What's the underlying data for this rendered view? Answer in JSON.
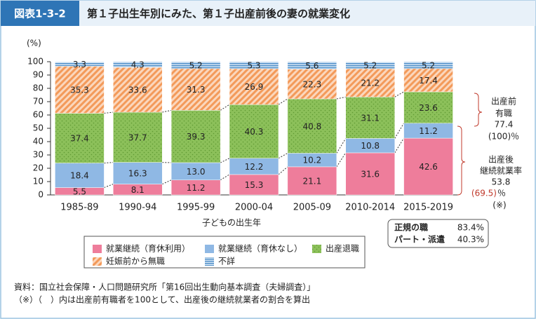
{
  "header": {
    "figure_no": "図表1-3-2",
    "title": "第１子出生年別にみた、第１子出産前後の妻の就業変化"
  },
  "chart_data": {
    "type": "bar",
    "stacked": true,
    "y_unit": "(%)",
    "x_label": "子どもの出生年",
    "categories": [
      "1985-89",
      "1990-94",
      "1995-99",
      "2000-04",
      "2005-09",
      "2010-2014",
      "2015-2019"
    ],
    "series": [
      {
        "name": "就業継続（育休利用）",
        "color": "#ee7d9b",
        "values": [
          5.5,
          8.1,
          11.2,
          15.3,
          21.1,
          31.6,
          42.6
        ],
        "value_labels": [
          "5.5",
          "8.1",
          "11.2",
          "15.3",
          "21.1",
          "31.6",
          "42.6"
        ]
      },
      {
        "name": "就業継続（育休なし）",
        "color": "#8fb8e4",
        "values": [
          18.4,
          16.3,
          13.0,
          12.2,
          10.2,
          10.8,
          11.2
        ],
        "value_labels": [
          "18.4",
          "16.3",
          "13.0",
          "12.2",
          "10.2",
          "10.8",
          "11.2"
        ]
      },
      {
        "name": "出産退職",
        "color": "#8cc05a",
        "values": [
          37.4,
          37.7,
          39.3,
          40.3,
          40.8,
          31.1,
          23.6
        ],
        "value_labels": [
          "37.4",
          "37.7",
          "39.3",
          "40.3",
          "40.8",
          "31.1",
          "23.6"
        ]
      },
      {
        "name": "妊娠前から無職",
        "color": "#f39a5a",
        "values": [
          35.3,
          33.6,
          31.3,
          26.9,
          22.3,
          21.2,
          17.4
        ],
        "value_labels": [
          "35.3",
          "33.6",
          "31.3",
          "26.9",
          "22.3",
          "21.2",
          "17.4"
        ]
      },
      {
        "name": "不詳",
        "color": "#4f8fc8",
        "values": [
          3.3,
          4.3,
          5.2,
          5.3,
          5.6,
          5.2,
          5.2
        ],
        "value_labels": [
          "3.3",
          "4.3",
          "5.2",
          "5.3",
          "5.6",
          "5.2",
          "5.2"
        ]
      }
    ],
    "ylim": [
      0,
      100
    ],
    "yticks": [
      0,
      10,
      20,
      30,
      40,
      50,
      60,
      70,
      80,
      90,
      100
    ],
    "annotations": {
      "before": [
        "出産前",
        "有職",
        "77.4",
        "(100)％"
      ],
      "after": [
        "出産後",
        "継続就業率",
        "53.8",
        "(69.5)",
        "％",
        "(※)"
      ],
      "box": [
        [
          "正規の職",
          "83.4%"
        ],
        [
          "パート・派遣",
          "40.3%"
        ]
      ]
    }
  },
  "notes": [
    "資料：国立社会保障・人口問題研究所「第16回出生動向基本調査（夫婦調査）」",
    "（※）（　）内は出産前有職者を100として、出産後の継続就業者の割合を算出"
  ]
}
